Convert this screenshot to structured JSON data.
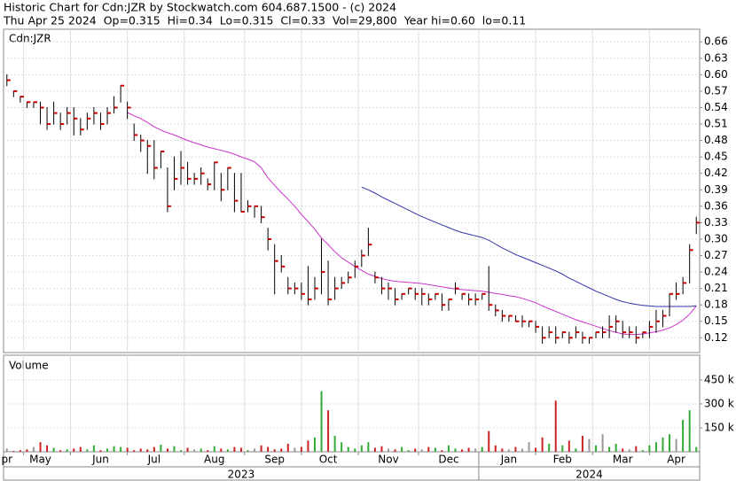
{
  "header": {
    "title": "Historic Chart for Cdn:JZR by Stockwatch.com 604.687.1500 - (c) 2024",
    "subtitle": "Thu Apr 25 2024  Op=0.315  Hi=0.34  Lo=0.315  Cl=0.33  Vol=29,800  Year hi=0.60  lo=0.11"
  },
  "chart_data": [
    {
      "type": "hlc",
      "label": "Cdn:JZR",
      "categories": [
        "pr",
        null,
        null,
        null,
        null,
        "May",
        null,
        null,
        null,
        null,
        null,
        null,
        null,
        null,
        "Jun",
        null,
        null,
        null,
        null,
        null,
        null,
        null,
        "Jul",
        null,
        null,
        null,
        null,
        null,
        null,
        null,
        null,
        "Aug",
        null,
        null,
        null,
        null,
        null,
        null,
        null,
        null,
        "Sep",
        null,
        null,
        null,
        null,
        null,
        null,
        null,
        "Oct",
        null,
        null,
        null,
        null,
        null,
        null,
        null,
        null,
        "Nov",
        null,
        null,
        null,
        null,
        null,
        null,
        null,
        null,
        "Dec",
        null,
        null,
        null,
        null,
        null,
        null,
        null,
        null,
        "Jan",
        null,
        null,
        null,
        null,
        null,
        null,
        null,
        "Feb",
        null,
        null,
        null,
        null,
        null,
        null,
        null,
        null,
        "Mar",
        null,
        null,
        null,
        null,
        null,
        null,
        null,
        "Apr",
        null,
        null,
        null
      ],
      "years": [
        "2023",
        "2024"
      ],
      "high": [
        0.6,
        0.57,
        0.56,
        0.55,
        0.55,
        0.55,
        0.54,
        0.55,
        0.53,
        0.54,
        0.54,
        0.52,
        0.53,
        0.54,
        0.53,
        0.54,
        0.56,
        0.58,
        0.55,
        0.51,
        0.49,
        0.48,
        0.48,
        0.46,
        0.43,
        0.45,
        0.46,
        0.44,
        0.42,
        0.43,
        0.41,
        0.44,
        0.42,
        0.43,
        0.42,
        0.42,
        0.37,
        0.36,
        0.36,
        0.32,
        0.29,
        0.27,
        0.23,
        0.22,
        0.22,
        0.25,
        0.23,
        0.3,
        0.26,
        0.23,
        0.23,
        0.24,
        0.26,
        0.28,
        0.32,
        0.24,
        0.23,
        0.22,
        0.21,
        0.2,
        0.21,
        0.21,
        0.21,
        0.2,
        0.2,
        0.2,
        0.19,
        0.22,
        0.2,
        0.2,
        0.2,
        0.2,
        0.25,
        0.18,
        0.17,
        0.16,
        0.16,
        0.16,
        0.15,
        0.15,
        0.14,
        0.14,
        0.14,
        0.13,
        0.13,
        0.14,
        0.13,
        0.12,
        0.13,
        0.14,
        0.16,
        0.16,
        0.15,
        0.14,
        0.14,
        0.13,
        0.15,
        0.17,
        0.17,
        0.2,
        0.22,
        0.23,
        0.29,
        0.34
      ],
      "low": [
        0.58,
        0.56,
        0.55,
        0.54,
        0.54,
        0.51,
        0.5,
        0.51,
        0.5,
        0.51,
        0.49,
        0.49,
        0.5,
        0.51,
        0.5,
        0.51,
        0.53,
        0.55,
        0.52,
        0.48,
        0.46,
        0.42,
        0.41,
        0.43,
        0.35,
        0.39,
        0.4,
        0.4,
        0.4,
        0.4,
        0.39,
        0.39,
        0.37,
        0.39,
        0.35,
        0.35,
        0.35,
        0.34,
        0.33,
        0.28,
        0.2,
        0.24,
        0.2,
        0.2,
        0.19,
        0.18,
        0.19,
        0.2,
        0.18,
        0.19,
        0.21,
        0.22,
        0.23,
        0.25,
        0.27,
        0.22,
        0.2,
        0.19,
        0.18,
        0.19,
        0.2,
        0.19,
        0.18,
        0.18,
        0.19,
        0.17,
        0.17,
        0.2,
        0.19,
        0.18,
        0.18,
        0.19,
        0.17,
        0.16,
        0.15,
        0.15,
        0.15,
        0.14,
        0.14,
        0.13,
        0.11,
        0.12,
        0.11,
        0.12,
        0.11,
        0.12,
        0.11,
        0.11,
        0.12,
        0.12,
        0.12,
        0.13,
        0.12,
        0.12,
        0.11,
        0.12,
        0.12,
        0.13,
        0.14,
        0.16,
        0.19,
        0.2,
        0.22,
        0.31
      ],
      "close": [
        0.59,
        0.57,
        0.56,
        0.55,
        0.55,
        0.54,
        0.51,
        0.53,
        0.51,
        0.53,
        0.52,
        0.5,
        0.52,
        0.53,
        0.51,
        0.53,
        0.54,
        0.58,
        0.54,
        0.49,
        0.48,
        0.47,
        0.43,
        0.46,
        0.36,
        0.41,
        0.43,
        0.41,
        0.41,
        0.42,
        0.4,
        0.44,
        0.39,
        0.43,
        0.37,
        0.35,
        0.36,
        0.36,
        0.34,
        0.3,
        0.26,
        0.25,
        0.21,
        0.21,
        0.2,
        0.19,
        0.21,
        0.24,
        0.19,
        0.21,
        0.22,
        0.23,
        0.25,
        0.27,
        0.29,
        0.23,
        0.21,
        0.21,
        0.19,
        0.2,
        0.21,
        0.2,
        0.2,
        0.19,
        0.2,
        0.18,
        0.19,
        0.21,
        0.2,
        0.19,
        0.19,
        0.2,
        0.18,
        0.17,
        0.16,
        0.16,
        0.15,
        0.15,
        0.15,
        0.14,
        0.12,
        0.13,
        0.12,
        0.13,
        0.12,
        0.13,
        0.12,
        0.12,
        0.13,
        0.13,
        0.14,
        0.15,
        0.13,
        0.13,
        0.12,
        0.13,
        0.14,
        0.15,
        0.16,
        0.2,
        0.2,
        0.22,
        0.28,
        0.33
      ],
      "bar_color": "#000000",
      "close_color": "#cc0000",
      "series": [
        {
          "color": "#cc33cc",
          "values": [
            null,
            null,
            null,
            null,
            null,
            null,
            null,
            null,
            null,
            null,
            null,
            null,
            null,
            null,
            null,
            null,
            null,
            null,
            0.531,
            0.525,
            0.52,
            0.513,
            0.505,
            0.499,
            0.494,
            0.49,
            0.485,
            0.48,
            0.476,
            0.472,
            0.468,
            0.465,
            0.462,
            0.459,
            0.455,
            0.45,
            0.446,
            0.441,
            0.43,
            0.412,
            0.398,
            0.385,
            0.373,
            0.36,
            0.345,
            0.332,
            0.318,
            0.302,
            0.29,
            0.277,
            0.266,
            0.258,
            0.25,
            0.243,
            0.236,
            0.232,
            0.228,
            0.225,
            0.223,
            0.222,
            0.221,
            0.22,
            0.219,
            0.217,
            0.215,
            0.213,
            0.211,
            0.209,
            0.208,
            0.207,
            0.206,
            0.205,
            0.203,
            0.201,
            0.199,
            0.197,
            0.195,
            0.192,
            0.188,
            0.184,
            0.178,
            0.173,
            0.168,
            0.163,
            0.158,
            0.153,
            0.149,
            0.145,
            0.141,
            0.137,
            0.133,
            0.13,
            0.127,
            0.126,
            0.126,
            0.127,
            0.129,
            0.131,
            0.134,
            0.138,
            0.144,
            0.152,
            0.163,
            0.178
          ]
        },
        {
          "color": "#3333aa",
          "values": [
            null,
            null,
            null,
            null,
            null,
            null,
            null,
            null,
            null,
            null,
            null,
            null,
            null,
            null,
            null,
            null,
            null,
            null,
            null,
            null,
            null,
            null,
            null,
            null,
            null,
            null,
            null,
            null,
            null,
            null,
            null,
            null,
            null,
            null,
            null,
            null,
            null,
            null,
            null,
            null,
            null,
            null,
            null,
            null,
            null,
            null,
            null,
            null,
            null,
            null,
            null,
            null,
            null,
            0.395,
            0.39,
            0.384,
            0.377,
            0.371,
            0.365,
            0.359,
            0.353,
            0.347,
            0.341,
            0.336,
            0.331,
            0.326,
            0.321,
            0.316,
            0.312,
            0.309,
            0.306,
            0.303,
            0.298,
            0.291,
            0.284,
            0.278,
            0.272,
            0.267,
            0.262,
            0.257,
            0.252,
            0.247,
            0.242,
            0.236,
            0.229,
            0.223,
            0.217,
            0.211,
            0.205,
            0.2,
            0.195,
            0.19,
            0.186,
            0.183,
            0.181,
            0.179,
            0.178,
            0.177,
            0.177,
            0.177,
            0.177,
            0.177,
            0.177,
            0.178
          ]
        }
      ],
      "ylim": [
        0.093,
        0.683
      ],
      "yticks": [
        0.66,
        0.63,
        {
          "value": 0.6,
          "label": "0.60"
        },
        0.57,
        0.54,
        0.51,
        0.48,
        0.45,
        0.42,
        0.39,
        0.36,
        0.33,
        {
          "value": 0.3,
          "label": "0.30"
        },
        0.27,
        0.24,
        0.21,
        0.18,
        0.15,
        0.12
      ],
      "grid": true
    },
    {
      "type": "bar",
      "label": "Volume",
      "values": [
        20000,
        5000,
        10000,
        15000,
        30000,
        60000,
        40000,
        25000,
        10000,
        15000,
        20000,
        30000,
        15000,
        40000,
        10000,
        20000,
        35000,
        30000,
        25000,
        10000,
        20000,
        15000,
        30000,
        45000,
        20000,
        35000,
        10000,
        25000,
        15000,
        20000,
        10000,
        35000,
        20000,
        15000,
        30000,
        25000,
        10000,
        20000,
        40000,
        30000,
        15000,
        20000,
        50000,
        25000,
        30000,
        70000,
        90000,
        380000,
        260000,
        100000,
        60000,
        30000,
        20000,
        40000,
        60000,
        25000,
        35000,
        20000,
        15000,
        30000,
        10000,
        20000,
        15000,
        30000,
        25000,
        10000,
        40000,
        20000,
        15000,
        25000,
        20000,
        30000,
        130000,
        40000,
        20000,
        15000,
        30000,
        20000,
        60000,
        25000,
        90000,
        50000,
        320000,
        40000,
        70000,
        20000,
        100000,
        80000,
        40000,
        110000,
        30000,
        50000,
        20000,
        15000,
        35000,
        10000,
        40000,
        60000,
        90000,
        110000,
        80000,
        200000,
        260000,
        29800
      ],
      "colors": {
        "up": "#33aa33",
        "down": "#cc2222",
        "flat": "#999999"
      },
      "ylim": [
        0,
        605000
      ],
      "yticks": [
        {
          "value": 450000,
          "label": "450 k"
        },
        {
          "value": 300000,
          "label": "300 k"
        },
        {
          "value": 150000,
          "label": "150 k"
        }
      ]
    }
  ]
}
